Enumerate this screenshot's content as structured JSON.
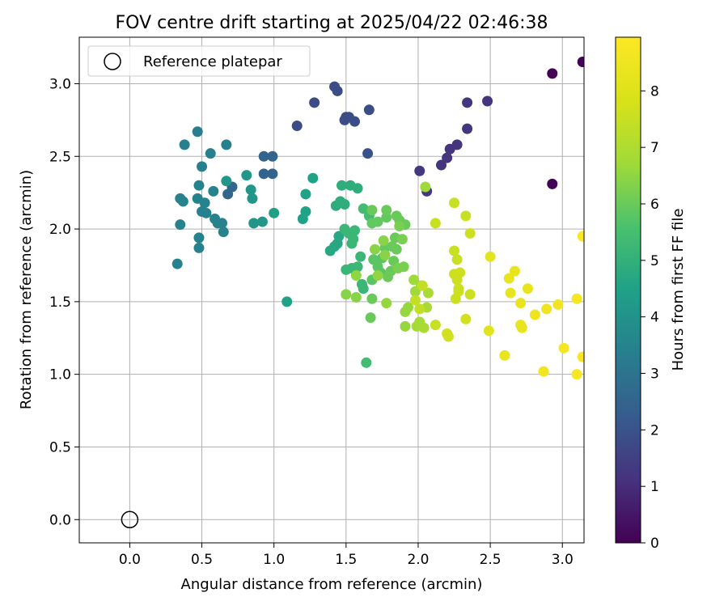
{
  "chart_data": {
    "type": "scatter",
    "title": "FOV centre drift starting at 2025/04/22 02:46:38",
    "xlabel": "Angular distance from reference (arcmin)",
    "ylabel": "Rotation from reference (arcmin)",
    "xlim": [
      -0.35,
      3.15
    ],
    "ylim": [
      -0.16,
      3.32
    ],
    "xticks": [
      "0.0",
      "0.5",
      "1.0",
      "1.5",
      "2.0",
      "2.5",
      "3.0"
    ],
    "yticks": [
      "0.0",
      "0.5",
      "1.0",
      "1.5",
      "2.0",
      "2.5",
      "3.0"
    ],
    "grid": true,
    "legend": {
      "placement": "top-left",
      "entries": [
        "Reference platepar"
      ]
    },
    "reference_point": {
      "x": 0.0,
      "y": 0.0,
      "label": "Reference platepar"
    },
    "colorbar": {
      "label": "Hours from first FF file",
      "min": 0,
      "max": 8.95,
      "colormap": "viridis",
      "ticks": [
        "0",
        "1",
        "2",
        "3",
        "4",
        "5",
        "6",
        "7",
        "8"
      ]
    },
    "series": [
      {
        "name": "",
        "points": [
          [
            2.93,
            3.07,
            0.05
          ],
          [
            3.14,
            3.15,
            0.05
          ],
          [
            2.93,
            2.31,
            0.1
          ],
          [
            2.34,
            2.87,
            1.2
          ],
          [
            2.48,
            2.88,
            1.2
          ],
          [
            2.34,
            2.69,
            1.2
          ],
          [
            2.27,
            2.58,
            1.2
          ],
          [
            2.22,
            2.55,
            1.2
          ],
          [
            2.2,
            2.49,
            1.2
          ],
          [
            2.16,
            2.44,
            1.2
          ],
          [
            2.01,
            2.4,
            1.3
          ],
          [
            2.06,
            2.26,
            1.3
          ],
          [
            1.42,
            2.98,
            1.8
          ],
          [
            1.44,
            2.95,
            1.8
          ],
          [
            1.28,
            2.87,
            1.8
          ],
          [
            1.5,
            2.77,
            1.8
          ],
          [
            1.52,
            2.77,
            1.8
          ],
          [
            1.49,
            2.75,
            1.8
          ],
          [
            1.56,
            2.74,
            1.8
          ],
          [
            1.16,
            2.71,
            1.8
          ],
          [
            1.66,
            2.82,
            1.8
          ],
          [
            1.65,
            2.52,
            2.0
          ],
          [
            0.93,
            2.5,
            2.5
          ],
          [
            0.99,
            2.5,
            2.5
          ],
          [
            0.93,
            2.38,
            2.5
          ],
          [
            0.99,
            2.38,
            2.5
          ],
          [
            0.68,
            2.24,
            2.6
          ],
          [
            0.71,
            2.29,
            2.6
          ],
          [
            0.47,
            2.67,
            3.3
          ],
          [
            0.38,
            2.58,
            3.4
          ],
          [
            0.56,
            2.52,
            3.4
          ],
          [
            0.67,
            2.58,
            3.4
          ],
          [
            0.5,
            2.43,
            3.4
          ],
          [
            0.48,
            2.3,
            3.5
          ],
          [
            0.35,
            2.21,
            3.5
          ],
          [
            0.58,
            2.26,
            3.5
          ],
          [
            0.47,
            2.21,
            3.5
          ],
          [
            0.37,
            2.19,
            3.5
          ],
          [
            0.52,
            2.18,
            3.5
          ],
          [
            0.5,
            2.12,
            3.5
          ],
          [
            0.53,
            2.11,
            3.5
          ],
          [
            0.59,
            2.07,
            3.5
          ],
          [
            0.61,
            2.04,
            3.5
          ],
          [
            0.64,
            2.04,
            3.5
          ],
          [
            0.65,
            1.98,
            3.5
          ],
          [
            0.35,
            2.03,
            3.5
          ],
          [
            0.48,
            1.94,
            3.5
          ],
          [
            0.48,
            1.87,
            3.5
          ],
          [
            0.33,
            1.76,
            3.5
          ],
          [
            0.81,
            2.37,
            4.1
          ],
          [
            0.85,
            2.21,
            4.1
          ],
          [
            0.84,
            2.27,
            4.1
          ],
          [
            0.92,
            2.05,
            4.1
          ],
          [
            0.86,
            2.04,
            4.1
          ],
          [
            0.67,
            2.33,
            4.1
          ],
          [
            1.0,
            2.11,
            4.4
          ],
          [
            1.09,
            1.5,
            4.5
          ],
          [
            1.2,
            2.07,
            4.5
          ],
          [
            1.22,
            2.12,
            4.5
          ],
          [
            1.22,
            2.24,
            4.5
          ],
          [
            1.27,
            2.35,
            4.5
          ],
          [
            1.39,
            1.85,
            4.7
          ],
          [
            1.42,
            1.88,
            4.7
          ],
          [
            1.44,
            1.9,
            4.7
          ],
          [
            1.45,
            1.95,
            4.7
          ],
          [
            1.43,
            2.16,
            4.9
          ],
          [
            1.46,
            2.19,
            4.9
          ],
          [
            1.49,
            2.17,
            4.9
          ],
          [
            1.47,
            2.3,
            4.9
          ],
          [
            1.53,
            2.3,
            4.9
          ],
          [
            1.58,
            2.28,
            4.9
          ],
          [
            1.49,
            2.0,
            5.2
          ],
          [
            1.52,
            1.97,
            5.2
          ],
          [
            1.55,
            1.93,
            5.2
          ],
          [
            1.56,
            1.99,
            5.2
          ],
          [
            1.54,
            1.9,
            5.2
          ],
          [
            1.5,
            1.72,
            5.2
          ],
          [
            1.54,
            1.73,
            5.2
          ],
          [
            1.58,
            1.74,
            5.2
          ],
          [
            1.6,
            1.81,
            5.2
          ],
          [
            1.61,
            1.62,
            5.2
          ],
          [
            1.62,
            1.59,
            5.2
          ],
          [
            1.64,
            1.08,
            5.4
          ],
          [
            1.62,
            2.14,
            5.4
          ],
          [
            1.66,
            2.09,
            5.4
          ],
          [
            1.69,
            1.79,
            5.8
          ],
          [
            1.72,
            1.74,
            5.8
          ],
          [
            1.74,
            1.7,
            5.8
          ],
          [
            1.68,
            1.65,
            5.8
          ],
          [
            1.75,
            1.8,
            5.8
          ],
          [
            1.77,
            1.87,
            5.9
          ],
          [
            1.78,
            2.08,
            5.9
          ],
          [
            1.72,
            2.05,
            5.9
          ],
          [
            1.68,
            2.04,
            5.9
          ],
          [
            1.68,
            1.52,
            6.0
          ],
          [
            1.67,
            1.39,
            6.0
          ],
          [
            1.68,
            2.13,
            6.0
          ],
          [
            1.78,
            2.13,
            6.0
          ],
          [
            1.85,
            2.09,
            6.0
          ],
          [
            1.87,
            2.06,
            6.0
          ],
          [
            1.88,
            2.03,
            6.0
          ],
          [
            1.91,
            2.03,
            6.0
          ],
          [
            1.84,
            1.94,
            6.0
          ],
          [
            1.85,
            1.86,
            6.0
          ],
          [
            1.82,
            1.88,
            6.0
          ],
          [
            1.83,
            1.78,
            6.0
          ],
          [
            1.81,
            1.71,
            6.0
          ],
          [
            1.79,
            1.67,
            6.0
          ],
          [
            1.86,
            1.73,
            6.2
          ],
          [
            1.9,
            1.74,
            6.2
          ],
          [
            1.89,
            1.93,
            6.2
          ],
          [
            1.57,
            1.53,
            6.4
          ],
          [
            1.5,
            1.55,
            6.4
          ],
          [
            1.57,
            1.68,
            6.5
          ],
          [
            1.72,
            1.68,
            6.5
          ],
          [
            1.7,
            1.86,
            6.4
          ],
          [
            1.76,
            1.92,
            6.4
          ],
          [
            1.77,
            1.82,
            6.4
          ],
          [
            1.78,
            1.49,
            6.6
          ],
          [
            1.91,
            1.33,
            6.6
          ],
          [
            1.91,
            1.43,
            6.6
          ],
          [
            1.93,
            1.46,
            6.6
          ],
          [
            1.97,
            1.65,
            6.7
          ],
          [
            1.98,
            1.57,
            6.7
          ],
          [
            2.02,
            1.61,
            6.7
          ],
          [
            2.01,
            1.36,
            6.8
          ],
          [
            1.99,
            1.33,
            6.8
          ],
          [
            2.04,
            1.32,
            6.9
          ],
          [
            2.06,
            1.46,
            6.9
          ],
          [
            2.07,
            1.56,
            6.9
          ],
          [
            2.05,
            2.29,
            6.7
          ],
          [
            1.87,
            2.02,
            6.2
          ],
          [
            1.98,
            1.51,
            7.4
          ],
          [
            2.01,
            1.45,
            7.4
          ],
          [
            2.03,
            1.61,
            7.4
          ],
          [
            2.12,
            1.34,
            7.5
          ],
          [
            2.12,
            2.04,
            7.5
          ],
          [
            2.25,
            2.18,
            7.5
          ],
          [
            2.25,
            1.85,
            7.5
          ],
          [
            2.27,
            1.79,
            7.5
          ],
          [
            2.33,
            2.09,
            7.5
          ],
          [
            2.36,
            1.97,
            7.6
          ],
          [
            2.29,
            1.7,
            7.6
          ],
          [
            2.25,
            1.69,
            7.6
          ],
          [
            2.27,
            1.65,
            7.6
          ],
          [
            2.28,
            1.59,
            7.6
          ],
          [
            2.28,
            1.57,
            7.6
          ],
          [
            2.26,
            1.52,
            7.6
          ],
          [
            2.36,
            1.55,
            7.6
          ],
          [
            2.33,
            1.38,
            7.7
          ],
          [
            2.2,
            1.28,
            7.7
          ],
          [
            2.21,
            1.26,
            7.7
          ],
          [
            2.49,
            1.3,
            8.1
          ],
          [
            2.5,
            1.81,
            8.2
          ],
          [
            2.6,
            1.13,
            8.3
          ],
          [
            2.63,
            1.66,
            8.3
          ],
          [
            2.64,
            1.56,
            8.3
          ],
          [
            2.67,
            1.71,
            8.3
          ],
          [
            2.71,
            1.49,
            8.3
          ],
          [
            2.71,
            1.34,
            8.3
          ],
          [
            2.72,
            1.32,
            8.3
          ],
          [
            2.76,
            1.59,
            8.3
          ],
          [
            2.81,
            1.41,
            8.5
          ],
          [
            2.87,
            1.02,
            8.6
          ],
          [
            2.89,
            1.45,
            8.6
          ],
          [
            2.97,
            1.48,
            8.6
          ],
          [
            3.01,
            1.18,
            8.7
          ],
          [
            3.1,
            1.52,
            8.7
          ],
          [
            3.1,
            1.0,
            8.8
          ],
          [
            3.14,
            1.12,
            8.8
          ],
          [
            3.14,
            1.95,
            8.9
          ]
        ]
      }
    ]
  }
}
